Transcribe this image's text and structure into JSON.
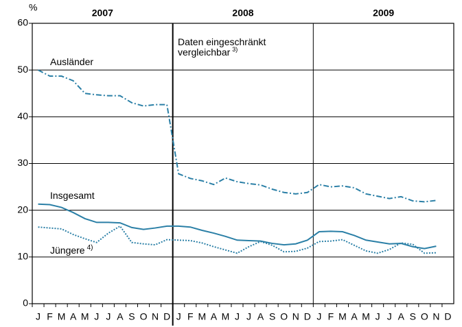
{
  "chart_data": {
    "type": "line",
    "y_unit": "%",
    "years": [
      "2007",
      "2008",
      "2009"
    ],
    "categories": [
      "J",
      "F",
      "M",
      "A",
      "M",
      "J",
      "J",
      "A",
      "S",
      "O",
      "N",
      "D",
      "J",
      "F",
      "M",
      "A",
      "M",
      "J",
      "J",
      "A",
      "S",
      "O",
      "N",
      "D",
      "J",
      "F",
      "M",
      "A",
      "M",
      "J",
      "J",
      "A",
      "S",
      "O",
      "N",
      "D"
    ],
    "series": [
      {
        "name": "Ausländer",
        "color": "#2a7fa6",
        "style": "dashdot",
        "values": [
          50,
          48.7,
          48.7,
          47.7,
          45,
          44.7,
          44.5,
          44.5,
          43,
          42.3,
          42.6,
          42.6,
          27.8,
          26.8,
          26.3,
          25.5,
          26.9,
          26.1,
          25.7,
          25.4,
          24.5,
          23.8,
          23.5,
          23.8,
          25.5,
          25,
          25.2,
          24.8,
          23.5,
          23,
          22.5,
          22.9,
          22,
          21.8,
          22.1,
          null
        ]
      },
      {
        "name": "Insgesamt",
        "color": "#2a7fa6",
        "style": "solid",
        "values": [
          21.3,
          21.2,
          20.6,
          19.5,
          18.2,
          17.4,
          17.4,
          17.3,
          16.3,
          15.9,
          16.2,
          16.6,
          16.6,
          16.4,
          15.7,
          15.1,
          14.4,
          13.6,
          13.5,
          13.4,
          12.9,
          12.6,
          12.8,
          13.6,
          15.4,
          15.5,
          15.4,
          14.6,
          13.6,
          13.2,
          12.8,
          12.9,
          12.2,
          11.8,
          12.3,
          null
        ]
      },
      {
        "name": "Jüngere",
        "footnote": "4)",
        "color": "#2a7fa6",
        "style": "dotted",
        "values": [
          16.4,
          16.2,
          16,
          14.8,
          13.9,
          13.1,
          15.1,
          16.6,
          13.1,
          12.8,
          12.6,
          13.7,
          13.6,
          13.5,
          13,
          12.2,
          11.5,
          10.8,
          12.2,
          13.3,
          12.5,
          11.1,
          11.2,
          11.9,
          13.3,
          13.4,
          13.7,
          12.5,
          11.3,
          10.8,
          11.6,
          13,
          12.7,
          10.8,
          10.9,
          null
        ]
      }
    ],
    "annotations": [
      {
        "lines": [
          "Daten eingeschränkt",
          "vergleichbar"
        ],
        "footnote": "3)"
      }
    ],
    "ylim": [
      0,
      60
    ],
    "yticks": [
      0,
      10,
      20,
      30,
      40,
      50,
      60
    ],
    "grid": true
  }
}
